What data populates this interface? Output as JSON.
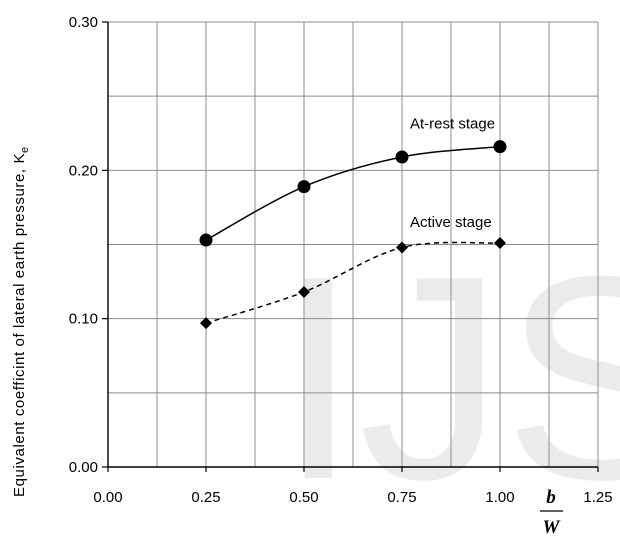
{
  "chart_data": {
    "type": "line",
    "ylabel": "Equivalent coefficint of lateral earth pressure, K",
    "ylabel_subscript": "e",
    "xlabel_numerator": "b",
    "xlabel_denominator": "W",
    "xlim": [
      0,
      1.25
    ],
    "ylim": [
      0,
      0.3
    ],
    "x_ticks": [
      "0.00",
      "0.25",
      "0.50",
      "0.75",
      "1.00",
      "1.25"
    ],
    "y_ticks": [
      "0.00",
      "0.10",
      "0.20",
      "0.30"
    ],
    "grid": true,
    "series": [
      {
        "name": "At-rest stage",
        "line_style": "solid",
        "marker": "circle",
        "points": [
          {
            "x": 0.25,
            "y": 0.153
          },
          {
            "x": 0.5,
            "y": 0.189
          },
          {
            "x": 0.75,
            "y": 0.209
          },
          {
            "x": 1.0,
            "y": 0.216
          }
        ]
      },
      {
        "name": "Active stage",
        "line_style": "dashed",
        "marker": "diamond",
        "points": [
          {
            "x": 0.25,
            "y": 0.097
          },
          {
            "x": 0.5,
            "y": 0.118
          },
          {
            "x": 0.75,
            "y": 0.148
          },
          {
            "x": 1.0,
            "y": 0.151
          }
        ]
      }
    ]
  },
  "watermark": {
    "text": "IJS",
    "color": "#d4d4d4"
  }
}
